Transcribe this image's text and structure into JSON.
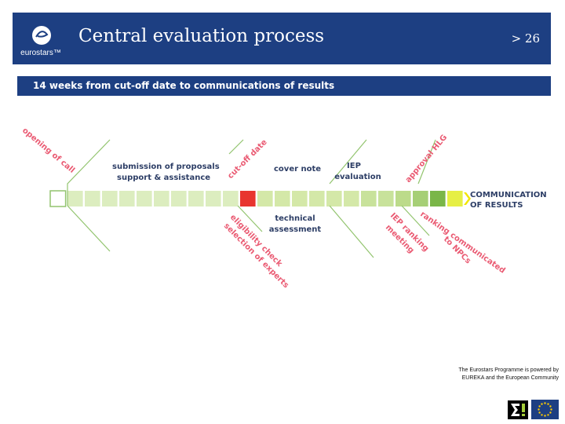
{
  "header": {
    "logo_text": "eurostars™",
    "title": "Central evaluation process",
    "slide_number": "> 26"
  },
  "banner": {
    "text": "14 weeks from cut-off date to communications of results"
  },
  "timeline": {
    "cells": [
      {
        "color": "#ffffff"
      },
      {
        "color": "#dcedbf"
      },
      {
        "color": "#dcedbf"
      },
      {
        "color": "#dcedbf"
      },
      {
        "color": "#dcedbf"
      },
      {
        "color": "#dcedbf"
      },
      {
        "color": "#dcedbf"
      },
      {
        "color": "#dcedbf"
      },
      {
        "color": "#dcedbf"
      },
      {
        "color": "#dcedbf"
      },
      {
        "color": "#dcedbf"
      },
      {
        "color": "#e8352f"
      },
      {
        "color": "#d4e8a8"
      },
      {
        "color": "#d4e8a8"
      },
      {
        "color": "#d4e8a8"
      },
      {
        "color": "#d4e8a8"
      },
      {
        "color": "#d4e8a8"
      },
      {
        "color": "#d4e8a8"
      },
      {
        "color": "#c8e29b"
      },
      {
        "color": "#c8e29b"
      },
      {
        "color": "#bcdb8a"
      },
      {
        "color": "#a6cf76"
      },
      {
        "color": "#7ab648"
      },
      {
        "color": "#e6ef44"
      }
    ],
    "arrow_color": "#f2e600",
    "end_label_line1": "COMMUNICATION",
    "end_label_line2": "OF RESULTS"
  },
  "labels": {
    "opening_of_call": "opening of call",
    "submission_line1": "submission of proposals",
    "submission_line2": "support & assistance",
    "cut_off_date": "cut-off date",
    "cover_note": "cover note",
    "iep_evaluation_line1": "IEP",
    "iep_evaluation_line2": "evaluation",
    "approval_hlg": "approval HLG",
    "eligibility_check": "eligibility check",
    "selection_of_experts": "selection of experts",
    "technical_line1": "technical",
    "technical_line2": "assessment",
    "iep_ranking": "IEP ranking",
    "meeting": "meeting",
    "ranking_communicated": "ranking communicated",
    "to_npcs": "to NPCs"
  },
  "colors": {
    "header_blue": "#1d3f82",
    "label_blue": "#2d3e66",
    "label_pink": "#ea5b73",
    "leader_green": "#92c46e"
  },
  "footer": {
    "powered_line1": "The Eurostars Programme is powered by",
    "powered_line2": "EUREKA and the European Community",
    "eureka_icon": "sigma-exclamation-icon",
    "eu_icon": "eu-flag-icon"
  }
}
